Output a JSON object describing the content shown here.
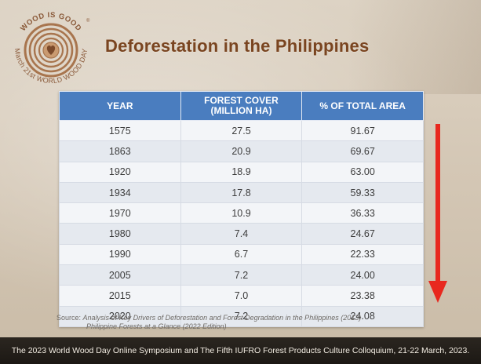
{
  "logo": {
    "top_text": "WOOD IS GOOD",
    "registered": "®",
    "ring_text": "March 21st WORLD WOOD DAY"
  },
  "title": "Deforestation in the Philippines",
  "table": {
    "headers": {
      "year": "YEAR",
      "cover_line1": "FOREST COVER",
      "cover_line2": "(MILLION HA)",
      "pct": "% OF TOTAL AREA"
    },
    "rows": [
      {
        "year": "1575",
        "cover": "27.5",
        "pct": "91.67"
      },
      {
        "year": "1863",
        "cover": "20.9",
        "pct": "69.67"
      },
      {
        "year": "1920",
        "cover": "18.9",
        "pct": "63.00"
      },
      {
        "year": "1934",
        "cover": "17.8",
        "pct": "59.33"
      },
      {
        "year": "1970",
        "cover": "10.9",
        "pct": "36.33"
      },
      {
        "year": "1980",
        "cover": "7.4",
        "pct": "24.67"
      },
      {
        "year": "1990",
        "cover": "6.7",
        "pct": "22.33"
      },
      {
        "year": "2005",
        "cover": "7.2",
        "pct": "24.00"
      },
      {
        "year": "2015",
        "cover": "7.0",
        "pct": "23.38"
      },
      {
        "year": "2020",
        "cover": "7.2",
        "pct": "24.08"
      }
    ]
  },
  "arrow": {
    "icon": "down-arrow-icon",
    "color": "#e8281e"
  },
  "source": {
    "label": "Source:",
    "line1": "Analysis of Key Drivers of Deforestation and Forest Degradation in the Philippines (2013)",
    "line2": "Philippine Forests at a Glance (2022 Edition)"
  },
  "footer": "The 2023 World Wood Day Online Symposium and The Fifth IUFRO Forest Products Culture Colloquium, 21-22 March, 2023.",
  "colors": {
    "title": "#7a4520",
    "header_bg": "#4a7dbf",
    "logo_brown": "#8a5a3a"
  }
}
